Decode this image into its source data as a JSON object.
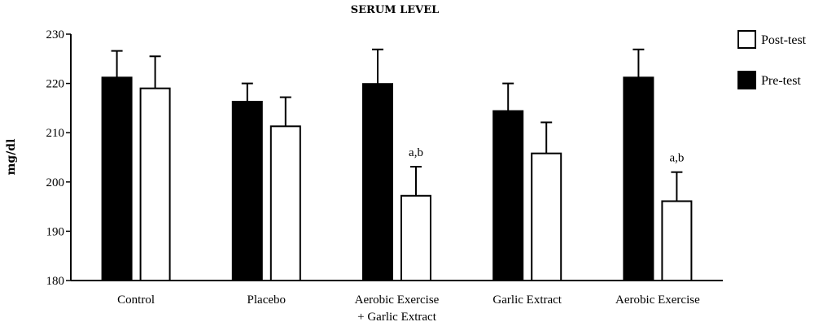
{
  "chart_data": {
    "type": "bar",
    "title": "SERUM LEVEL",
    "ylabel": "mg/dl",
    "xlabel": "",
    "ylim": [
      180,
      230
    ],
    "yticks": [
      180,
      190,
      200,
      210,
      220,
      230
    ],
    "grid": false,
    "legend_position": "top-right",
    "categories": [
      [
        "Control"
      ],
      [
        "Placebo"
      ],
      [
        "Aerobic Exercise",
        "+ Garlic Extract"
      ],
      [
        "Garlic Extract"
      ],
      [
        "Aerobic Exercise"
      ]
    ],
    "series": [
      {
        "name": "Pre-test",
        "fill": "#000000",
        "values": [
          221.2,
          216.3,
          219.9,
          214.4,
          221.2
        ],
        "errors": [
          5.4,
          3.7,
          7.0,
          5.6,
          5.7
        ]
      },
      {
        "name": "Post-test",
        "fill": "#ffffff",
        "values": [
          219.0,
          211.3,
          197.2,
          205.8,
          196.1
        ],
        "errors": [
          6.5,
          5.9,
          5.9,
          6.3,
          5.9
        ]
      }
    ],
    "annotations": [
      {
        "category_index": 2,
        "series_index": 1,
        "text": "a,b"
      },
      {
        "category_index": 4,
        "series_index": 1,
        "text": "a,b"
      }
    ],
    "legend": [
      {
        "label": "Post-test",
        "fill": "#ffffff"
      },
      {
        "label": "Pre-test",
        "fill": "#000000"
      }
    ]
  }
}
